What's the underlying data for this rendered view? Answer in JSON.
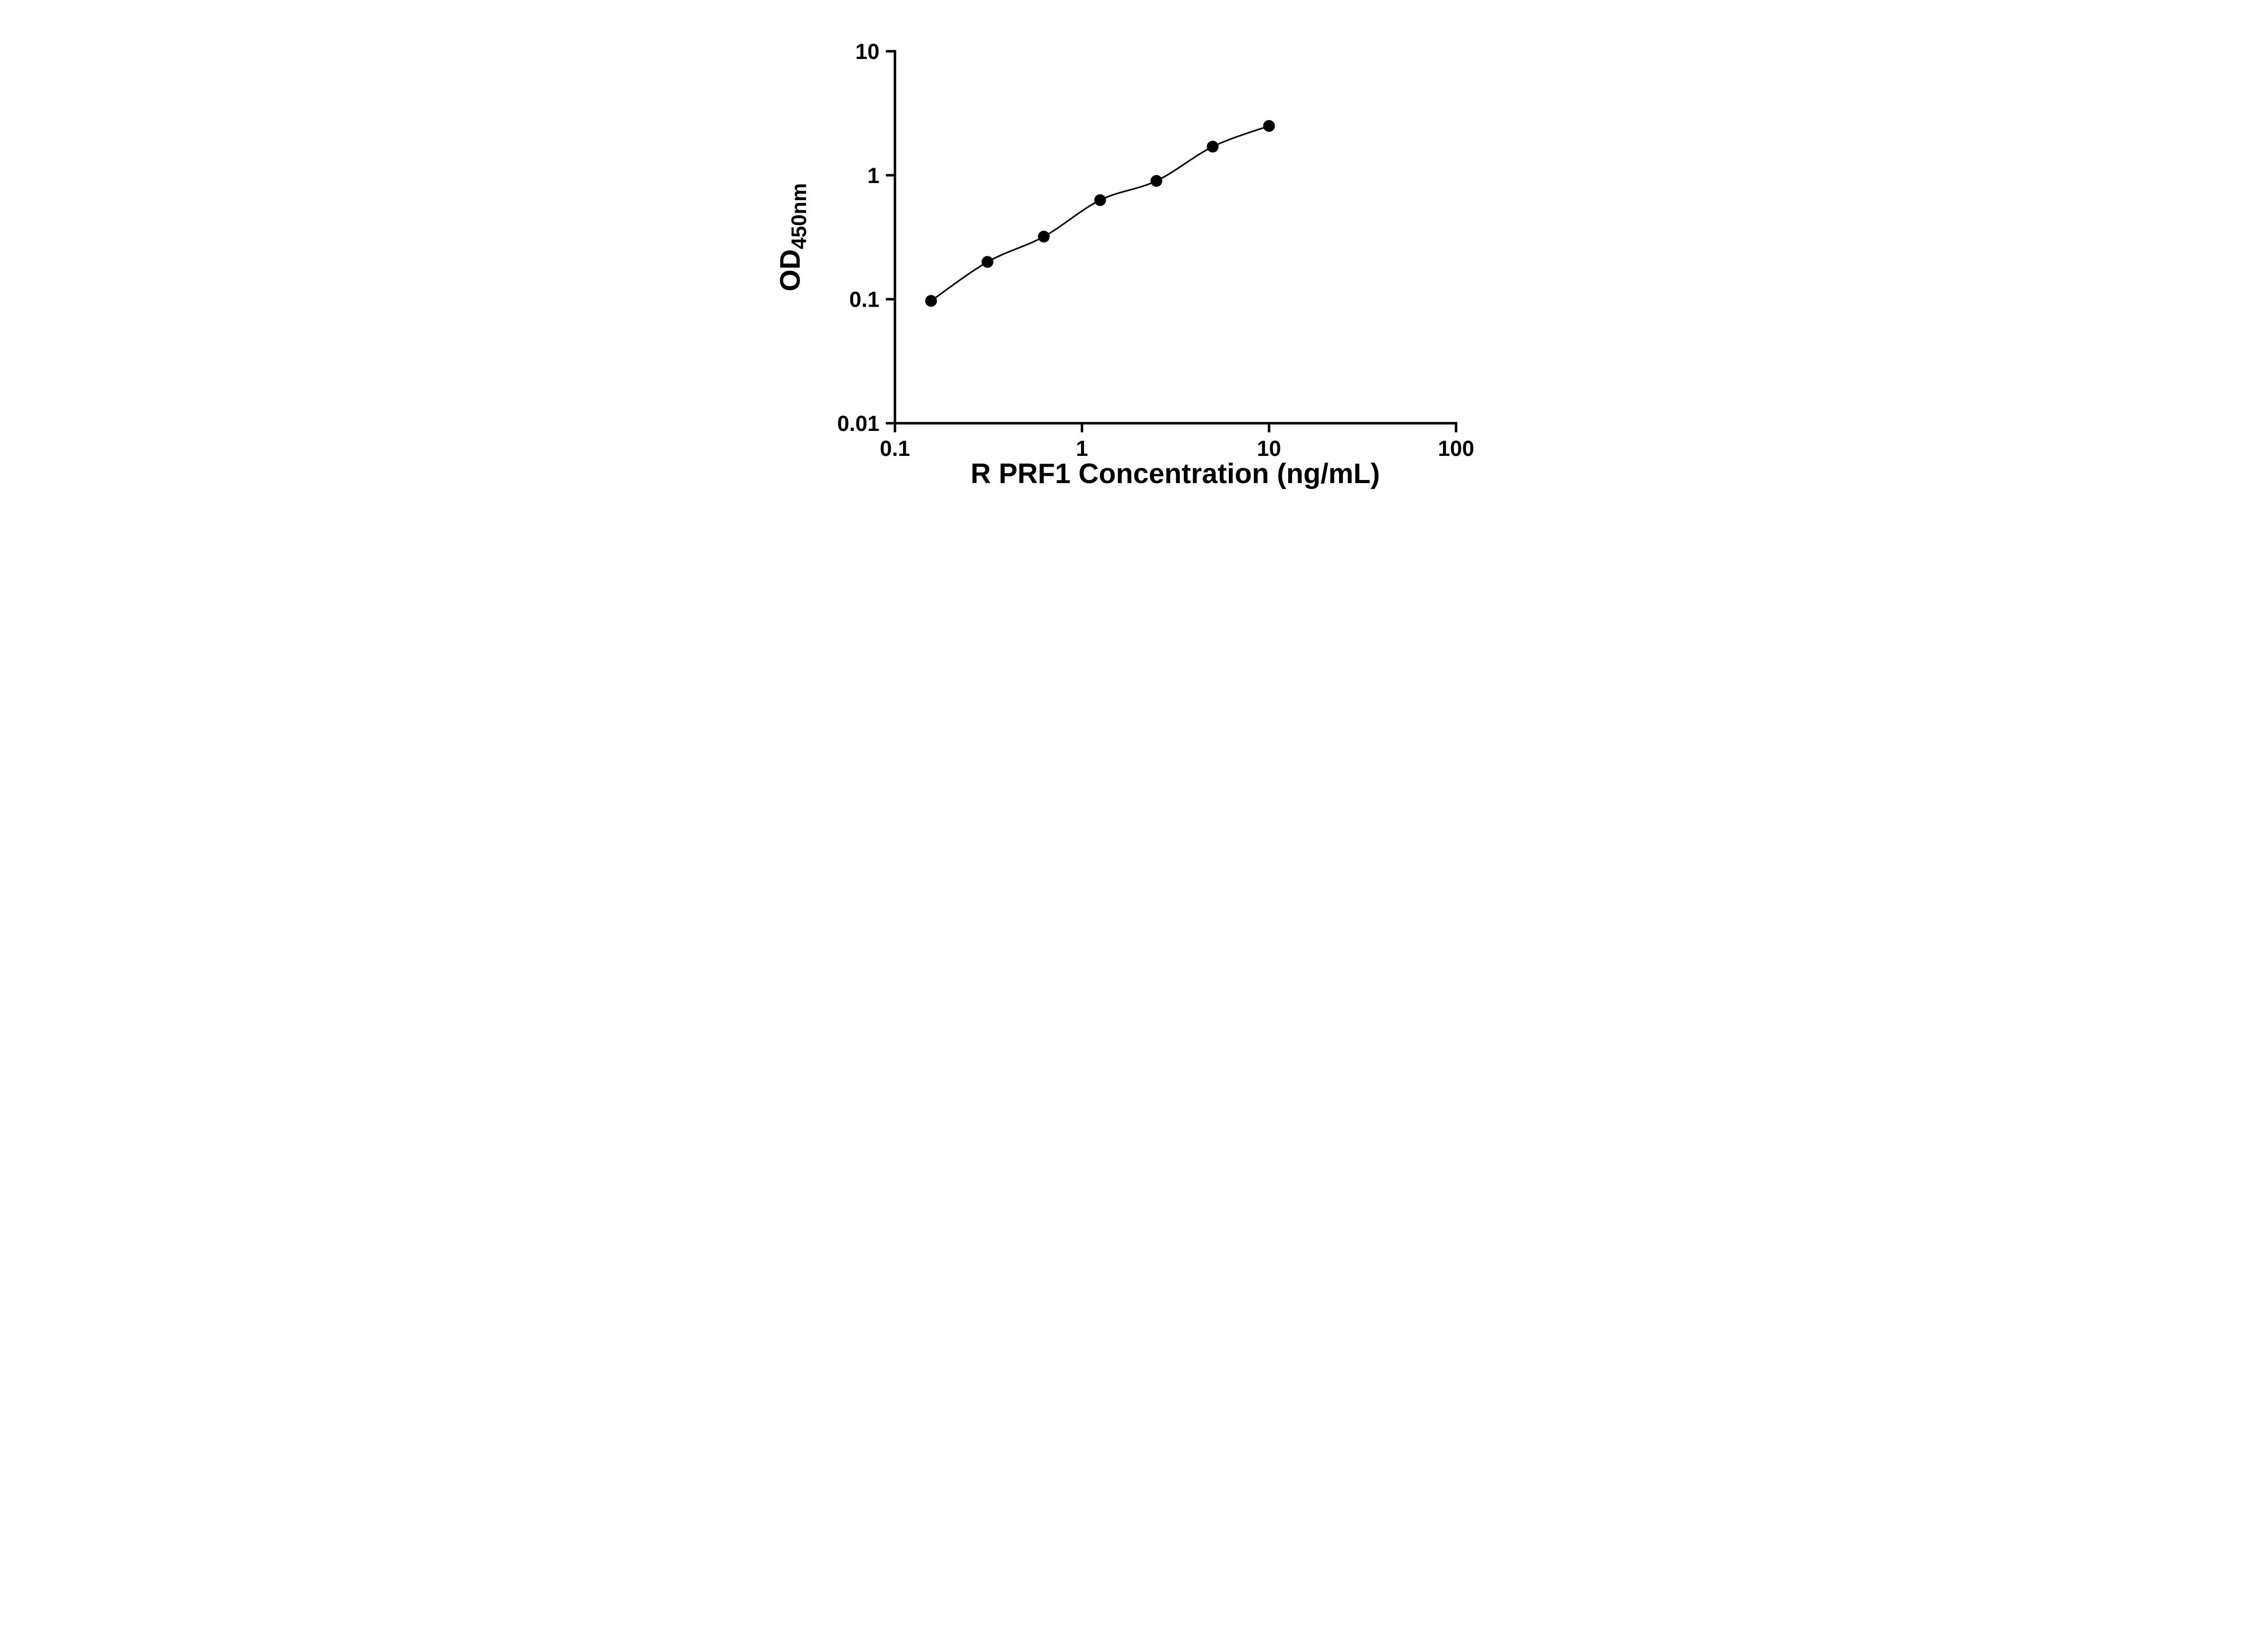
{
  "chart_data": {
    "type": "scatter",
    "title": "",
    "xlabel": "R PRF1 Concentration (ng/mL)",
    "ylabel_main": "OD",
    "ylabel_sub": "450nm",
    "x_scale": "log",
    "y_scale": "log",
    "x": [
      0.156,
      0.3125,
      0.625,
      1.25,
      2.5,
      5,
      10
    ],
    "y": [
      0.097,
      0.2,
      0.32,
      0.63,
      0.9,
      1.7,
      2.5
    ],
    "xlim": [
      0.1,
      100
    ],
    "ylim": [
      0.01,
      10
    ],
    "x_ticks": [
      0.1,
      1,
      10,
      100
    ],
    "x_tick_labels": [
      "0.1",
      "1",
      "10",
      "100"
    ],
    "y_ticks": [
      0.01,
      0.1,
      1,
      10
    ],
    "y_tick_labels": [
      "0.01",
      "0.1",
      "1",
      "10"
    ],
    "grid": false,
    "legend": "none",
    "marker_shape": "circle",
    "marker_color": "#000000",
    "line_color": "#000000",
    "axis_color": "#000000",
    "background": "#ffffff"
  }
}
